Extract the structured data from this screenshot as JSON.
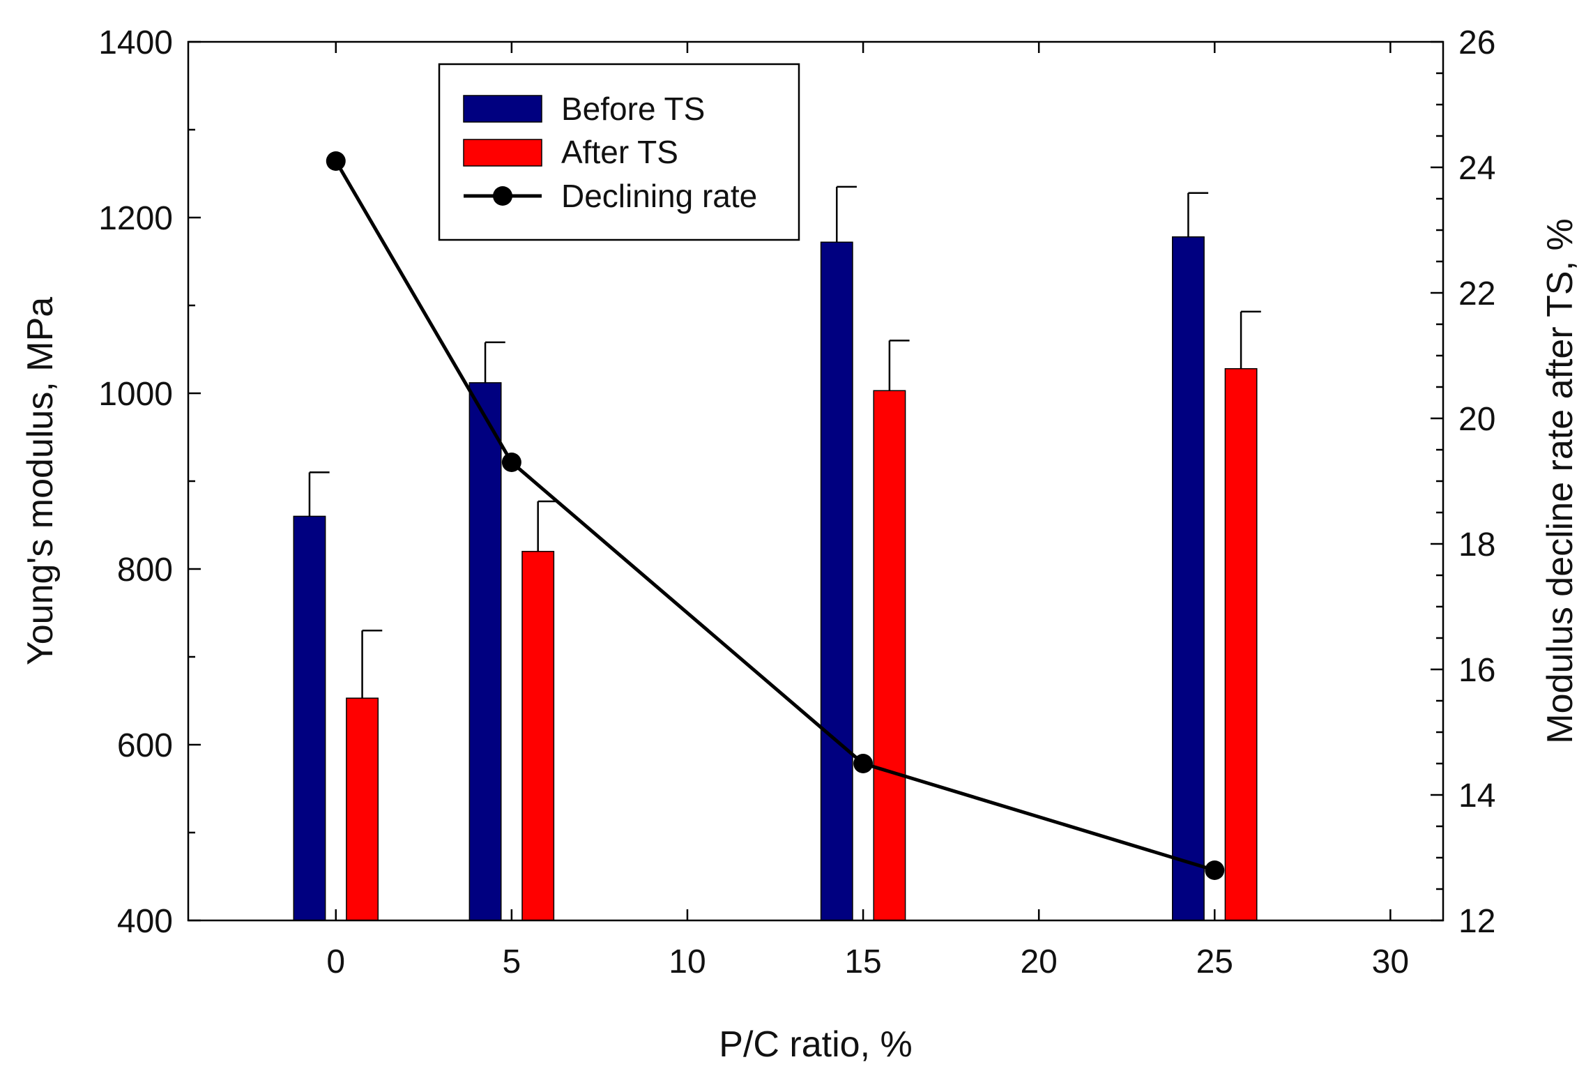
{
  "chart_data": {
    "type": "bar",
    "xlabel": "P/C ratio, %",
    "ylabel": "Young's modulus, MPa",
    "y2label": "Modulus decline rate after TS, %",
    "xlim": [
      -4.2,
      31.5
    ],
    "ylim": [
      400,
      1400
    ],
    "y2lim": [
      12,
      26
    ],
    "xticks": [
      "0",
      "5",
      "10",
      "15",
      "20",
      "25",
      "30"
    ],
    "yticks": [
      "400",
      "600",
      "800",
      "1000",
      "1200",
      "1400"
    ],
    "y2ticks": [
      "12",
      "14",
      "16",
      "18",
      "20",
      "22",
      "24",
      "26"
    ],
    "x": [
      0,
      5,
      15,
      25
    ],
    "series": [
      {
        "name": "Before TS",
        "kind": "bar",
        "axis": "left",
        "color": "#000080",
        "offset": -0.75,
        "values": [
          860,
          1012,
          1172,
          1178
        ],
        "errors": [
          50,
          46,
          63,
          50
        ]
      },
      {
        "name": "After TS",
        "kind": "bar",
        "axis": "left",
        "color": "#ff0000",
        "offset": 0.75,
        "values": [
          653,
          820,
          1003,
          1028
        ],
        "errors": [
          77,
          57,
          57,
          65
        ]
      },
      {
        "name": "Declining rate",
        "kind": "line",
        "axis": "right",
        "color": "#000000",
        "values": [
          24.1,
          19.3,
          14.5,
          12.8
        ]
      }
    ],
    "bar_width": 0.9,
    "legend": {
      "position": "top-left",
      "entries": [
        "Before TS",
        "After TS",
        "Declining rate"
      ]
    },
    "grid": false
  }
}
